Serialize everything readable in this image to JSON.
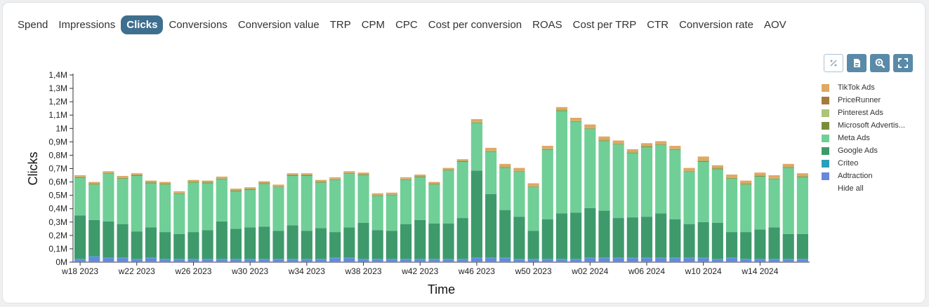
{
  "tabs": [
    "Spend",
    "Impressions",
    "Clicks",
    "Conversions",
    "Conversion value",
    "TRP",
    "CPM",
    "CPC",
    "Cost per conversion",
    "ROAS",
    "Cost per TRP",
    "CTR",
    "Conversion rate",
    "AOV"
  ],
  "active_tab": "Clicks",
  "toolbar": [
    "percent-icon",
    "export-icon",
    "zoom-icon",
    "fullscreen-icon"
  ],
  "legend": {
    "items": [
      {
        "name": "TikTok Ads",
        "color": "#e0a862"
      },
      {
        "name": "PriceRunner",
        "color": "#a57a3a"
      },
      {
        "name": "Pinterest Ads",
        "color": "#aec47a"
      },
      {
        "name": "Microsoft Advertis...",
        "color": "#7a8e3a"
      },
      {
        "name": "Meta Ads",
        "color": "#6fcf97"
      },
      {
        "name": "Google Ads",
        "color": "#3f9a6b"
      },
      {
        "name": "Criteo",
        "color": "#2a9fb8"
      },
      {
        "name": "Adtraction",
        "color": "#6688dd"
      }
    ],
    "hide_all": "Hide all"
  },
  "chart_data": {
    "type": "bar",
    "stacked": true,
    "xlabel": "Time",
    "ylabel": "Clicks",
    "ylim": [
      0,
      1400000
    ],
    "yticks": [
      "0M",
      "0,1M",
      "0,2M",
      "0,3M",
      "0,4M",
      "0,5M",
      "0,6M",
      "0,7M",
      "0,8M",
      "0,9M",
      "1M",
      "1,1M",
      "1,2M",
      "1,3M",
      "1,4M"
    ],
    "xtick_labels": [
      "w18 2023",
      "w22 2023",
      "w26 2023",
      "w30 2023",
      "w34 2023",
      "w38 2023",
      "w42 2023",
      "w46 2023",
      "w50 2023",
      "w02 2024",
      "w06 2024",
      "w10 2024",
      "w14 2024"
    ],
    "xtick_index": [
      0,
      4,
      8,
      12,
      16,
      20,
      24,
      28,
      32,
      36,
      40,
      44,
      48
    ],
    "categories": [
      "w18 2023",
      "w19 2023",
      "w20 2023",
      "w21 2023",
      "w22 2023",
      "w23 2023",
      "w24 2023",
      "w25 2023",
      "w26 2023",
      "w27 2023",
      "w28 2023",
      "w29 2023",
      "w30 2023",
      "w31 2023",
      "w32 2023",
      "w33 2023",
      "w34 2023",
      "w35 2023",
      "w36 2023",
      "w37 2023",
      "w38 2023",
      "w39 2023",
      "w40 2023",
      "w41 2023",
      "w42 2023",
      "w43 2023",
      "w44 2023",
      "w45 2023",
      "w46 2023",
      "w47 2023",
      "w48 2023",
      "w49 2023",
      "w50 2023",
      "w51 2023",
      "w52 2023",
      "w01 2024",
      "w02 2024",
      "w03 2024",
      "w04 2024",
      "w05 2024",
      "w06 2024",
      "w07 2024",
      "w08 2024",
      "w09 2024",
      "w10 2024",
      "w11 2024",
      "w12 2024",
      "w13 2024",
      "w14 2024",
      "w15 2024",
      "w16 2024",
      "w17 2024"
    ],
    "series": [
      {
        "name": "Adtraction",
        "color": "#6688dd",
        "values": [
          20000,
          40000,
          30000,
          30000,
          20000,
          30000,
          20000,
          20000,
          20000,
          20000,
          20000,
          20000,
          20000,
          20000,
          20000,
          20000,
          20000,
          20000,
          30000,
          30000,
          20000,
          20000,
          20000,
          20000,
          20000,
          20000,
          20000,
          20000,
          30000,
          30000,
          30000,
          20000,
          20000,
          20000,
          20000,
          20000,
          30000,
          30000,
          30000,
          30000,
          30000,
          30000,
          30000,
          30000,
          30000,
          20000,
          30000,
          20000,
          20000,
          20000,
          20000,
          20000
        ]
      },
      {
        "name": "Criteo",
        "color": "#2a9fb8",
        "values": [
          5000,
          5000,
          5000,
          5000,
          5000,
          5000,
          5000,
          5000,
          5000,
          5000,
          5000,
          5000,
          5000,
          5000,
          5000,
          5000,
          5000,
          5000,
          5000,
          5000,
          5000,
          5000,
          5000,
          5000,
          5000,
          5000,
          5000,
          5000,
          5000,
          5000,
          5000,
          5000,
          5000,
          5000,
          5000,
          5000,
          5000,
          5000,
          5000,
          5000,
          5000,
          5000,
          5000,
          5000,
          5000,
          5000,
          5000,
          5000,
          5000,
          5000,
          5000,
          5000
        ]
      },
      {
        "name": "Google Ads",
        "color": "#3f9a6b",
        "values": [
          325000,
          270000,
          270000,
          250000,
          205000,
          225000,
          200000,
          185000,
          200000,
          215000,
          280000,
          225000,
          235000,
          240000,
          210000,
          250000,
          210000,
          230000,
          190000,
          225000,
          270000,
          215000,
          210000,
          260000,
          290000,
          265000,
          265000,
          305000,
          650000,
          475000,
          355000,
          315000,
          210000,
          295000,
          340000,
          345000,
          370000,
          350000,
          295000,
          300000,
          305000,
          330000,
          285000,
          250000,
          265000,
          270000,
          190000,
          200000,
          220000,
          235000,
          185000,
          185000
        ]
      },
      {
        "name": "Meta Ads",
        "color": "#6fcf97",
        "values": [
          280000,
          265000,
          355000,
          340000,
          415000,
          330000,
          355000,
          300000,
          370000,
          350000,
          315000,
          280000,
          280000,
          320000,
          325000,
          370000,
          410000,
          340000,
          390000,
          400000,
          355000,
          255000,
          265000,
          330000,
          320000,
          290000,
          395000,
          420000,
          355000,
          315000,
          315000,
          335000,
          325000,
          520000,
          765000,
          680000,
          590000,
          520000,
          550000,
          480000,
          520000,
          510000,
          520000,
          390000,
          450000,
          400000,
          400000,
          355000,
          395000,
          360000,
          495000,
          425000
        ]
      },
      {
        "name": "Microsoft Advertising",
        "color": "#7a8e3a",
        "values": [
          5000,
          5000,
          5000,
          5000,
          5000,
          5000,
          5000,
          5000,
          5000,
          5000,
          5000,
          5000,
          5000,
          5000,
          5000,
          5000,
          5000,
          5000,
          5000,
          5000,
          5000,
          5000,
          5000,
          5000,
          5000,
          5000,
          5000,
          5000,
          5000,
          5000,
          5000,
          5000,
          5000,
          5000,
          5000,
          5000,
          5000,
          5000,
          5000,
          5000,
          5000,
          5000,
          5000,
          5000,
          5000,
          5000,
          5000,
          5000,
          5000,
          5000,
          5000,
          5000
        ]
      },
      {
        "name": "Pinterest Ads",
        "color": "#aec47a",
        "values": [
          3000,
          3000,
          3000,
          3000,
          3000,
          3000,
          3000,
          3000,
          3000,
          3000,
          3000,
          3000,
          3000,
          3000,
          3000,
          3000,
          3000,
          3000,
          3000,
          3000,
          3000,
          3000,
          3000,
          3000,
          3000,
          3000,
          3000,
          3000,
          3000,
          3000,
          3000,
          3000,
          3000,
          3000,
          3000,
          3000,
          3000,
          3000,
          3000,
          3000,
          3000,
          3000,
          3000,
          3000,
          3000,
          3000,
          3000,
          3000,
          3000,
          3000,
          3000,
          3000
        ]
      },
      {
        "name": "PriceRunner",
        "color": "#a57a3a",
        "values": [
          2000,
          2000,
          2000,
          2000,
          2000,
          2000,
          2000,
          2000,
          2000,
          2000,
          2000,
          2000,
          2000,
          2000,
          2000,
          2000,
          2000,
          2000,
          2000,
          2000,
          2000,
          2000,
          2000,
          2000,
          2000,
          2000,
          2000,
          2000,
          2000,
          2000,
          2000,
          2000,
          2000,
          2000,
          2000,
          2000,
          2000,
          2000,
          2000,
          2000,
          2000,
          2000,
          2000,
          2000,
          2000,
          2000,
          2000,
          2000,
          2000,
          2000,
          2000,
          2000
        ]
      },
      {
        "name": "TikTok Ads",
        "color": "#e0a862",
        "values": [
          10000,
          10000,
          10000,
          10000,
          10000,
          10000,
          10000,
          10000,
          10000,
          10000,
          10000,
          10000,
          10000,
          10000,
          10000,
          10000,
          10000,
          10000,
          10000,
          10000,
          10000,
          10000,
          10000,
          10000,
          10000,
          10000,
          10000,
          10000,
          20000,
          20000,
          20000,
          20000,
          20000,
          20000,
          20000,
          20000,
          25000,
          25000,
          20000,
          20000,
          20000,
          20000,
          20000,
          20000,
          30000,
          20000,
          20000,
          20000,
          20000,
          20000,
          20000,
          20000
        ]
      }
    ]
  }
}
